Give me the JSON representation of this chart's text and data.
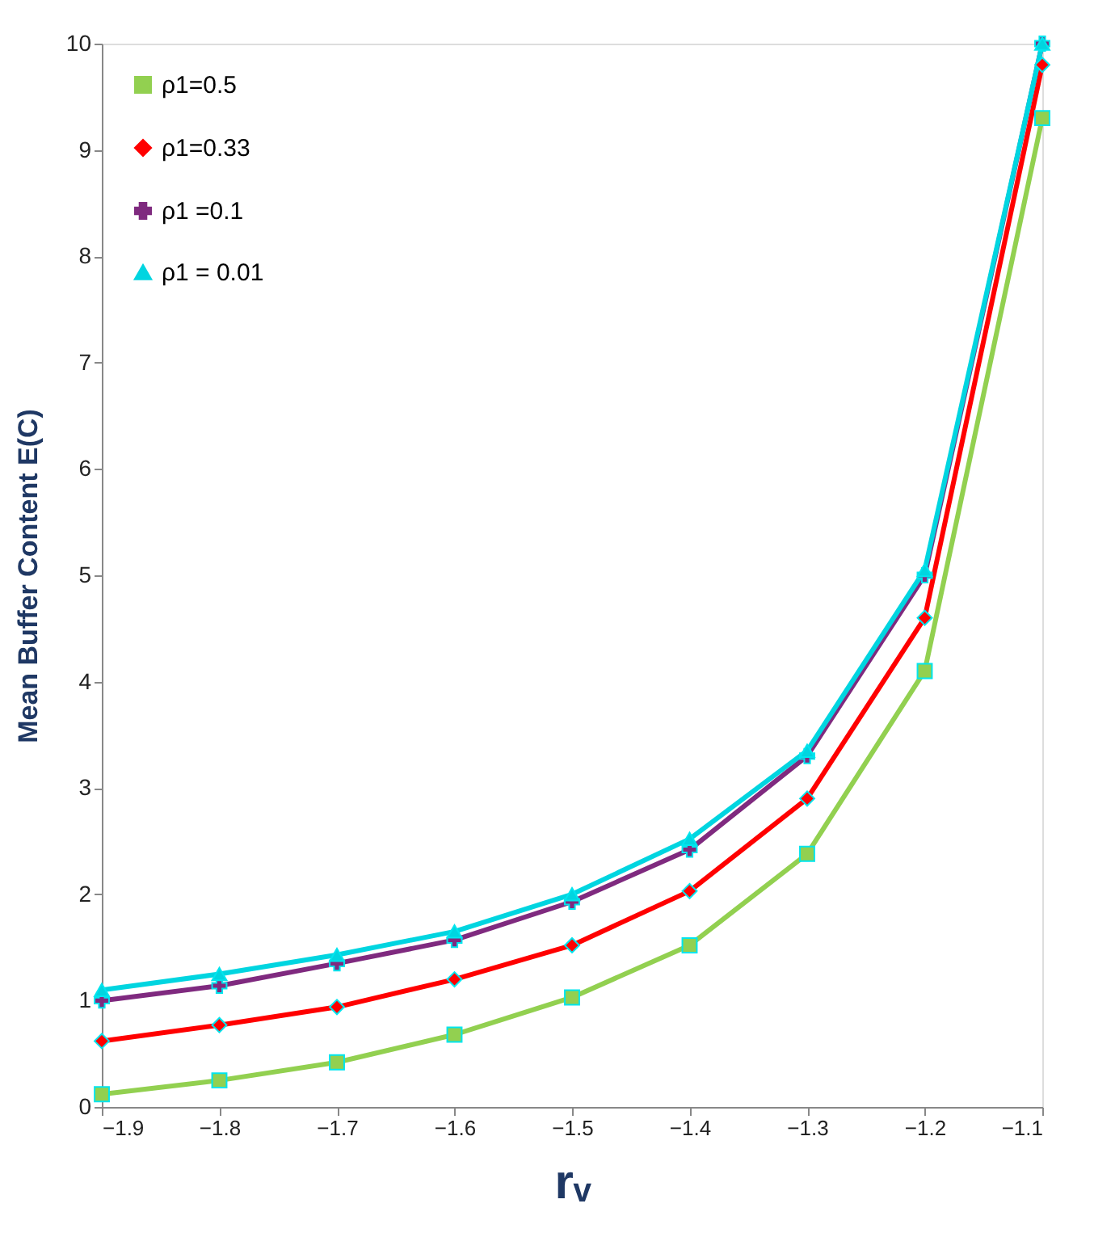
{
  "chart_data": {
    "type": "line",
    "x": [
      -1.9,
      -1.8,
      -1.7,
      -1.6,
      -1.5,
      -1.4,
      -1.3,
      -1.2,
      -1.1
    ],
    "xlabel": "rᵥ",
    "ylabel": "Mean Buffer Content E(C)",
    "xlim": [
      -1.9,
      -1.1
    ],
    "xticks": [
      -1.9,
      -1.8,
      -1.7,
      -1.6,
      -1.5,
      -1.4,
      -1.3,
      -1.2,
      -1.1
    ],
    "ylim": [
      0,
      10
    ],
    "yticks": [
      0,
      1,
      2,
      3,
      4,
      5,
      6,
      7,
      8,
      9,
      10
    ],
    "grid": false,
    "legend": "top left",
    "line_style": "solid",
    "series": [
      {
        "name": "ρ1=0.5",
        "color": "#92d050",
        "marker": "square",
        "values": [
          0.12,
          0.25,
          0.42,
          0.68,
          1.03,
          1.52,
          2.38,
          4.1,
          9.3
        ]
      },
      {
        "name": "ρ1=0.33",
        "color": "#ff0000",
        "marker": "diamond",
        "values": [
          0.62,
          0.77,
          0.94,
          1.2,
          1.52,
          2.03,
          2.9,
          4.6,
          9.8
        ]
      },
      {
        "name": "ρ1 =0.1",
        "color": "#7f2a7f",
        "marker": "cross",
        "values": [
          1.0,
          1.14,
          1.35,
          1.57,
          1.93,
          2.42,
          3.3,
          5.0,
          10.0
        ]
      },
      {
        "name": "ρ1 = 0.01",
        "color": "#00d5e0",
        "marker": "triangle",
        "values": [
          1.1,
          1.25,
          1.43,
          1.65,
          2.0,
          2.52,
          3.35,
          5.05,
          10.0
        ]
      }
    ]
  }
}
